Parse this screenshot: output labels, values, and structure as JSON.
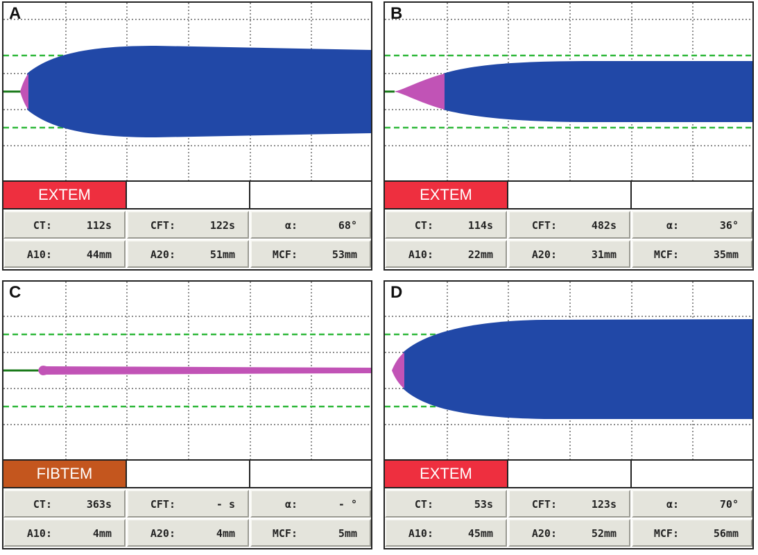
{
  "colors": {
    "clot_blue": "#2148a7",
    "clot_magenta": "#c153b6",
    "baseline_green": "#1a7a1a",
    "dashed_green": "#2fb83a",
    "extem_red": "#ee2f3f",
    "fibtem_orange": "#c4561e",
    "cell_bg": "#e4e4dc"
  },
  "panels": [
    {
      "letter": "A",
      "assay": "EXTEM",
      "assay_color": "#ee2f3f",
      "row1": [
        {
          "label": "CT:",
          "value": "112s"
        },
        {
          "label": "CFT:",
          "value": "122s"
        },
        {
          "label": "α:",
          "value": "68°"
        }
      ],
      "row2": [
        {
          "label": "A10:",
          "value": "44mm"
        },
        {
          "label": "A20:",
          "value": "51mm"
        },
        {
          "label": "MCF:",
          "value": "53mm"
        }
      ]
    },
    {
      "letter": "B",
      "assay": "EXTEM",
      "assay_color": "#ee2f3f",
      "row1": [
        {
          "label": "CT:",
          "value": "114s"
        },
        {
          "label": "CFT:",
          "value": "482s"
        },
        {
          "label": "α:",
          "value": "36°"
        }
      ],
      "row2": [
        {
          "label": "A10:",
          "value": "22mm"
        },
        {
          "label": "A20:",
          "value": "31mm"
        },
        {
          "label": "MCF:",
          "value": "35mm"
        }
      ]
    },
    {
      "letter": "C",
      "assay": "FIBTEM",
      "assay_color": "#c4561e",
      "row1": [
        {
          "label": "CT:",
          "value": "363s"
        },
        {
          "label": "CFT:",
          "value": "- s"
        },
        {
          "label": "α:",
          "value": "- °"
        }
      ],
      "row2": [
        {
          "label": "A10:",
          "value": "4mm"
        },
        {
          "label": "A20:",
          "value": "4mm"
        },
        {
          "label": "MCF:",
          "value": "5mm"
        }
      ]
    },
    {
      "letter": "D",
      "assay": "EXTEM",
      "assay_color": "#ee2f3f",
      "row1": [
        {
          "label": "CT:",
          "value": "53s"
        },
        {
          "label": "CFT:",
          "value": "123s"
        },
        {
          "label": "α:",
          "value": "70°"
        }
      ],
      "row2": [
        {
          "label": "A10:",
          "value": "45mm"
        },
        {
          "label": "A20:",
          "value": "52mm"
        },
        {
          "label": "MCF:",
          "value": "56mm"
        }
      ]
    }
  ]
}
